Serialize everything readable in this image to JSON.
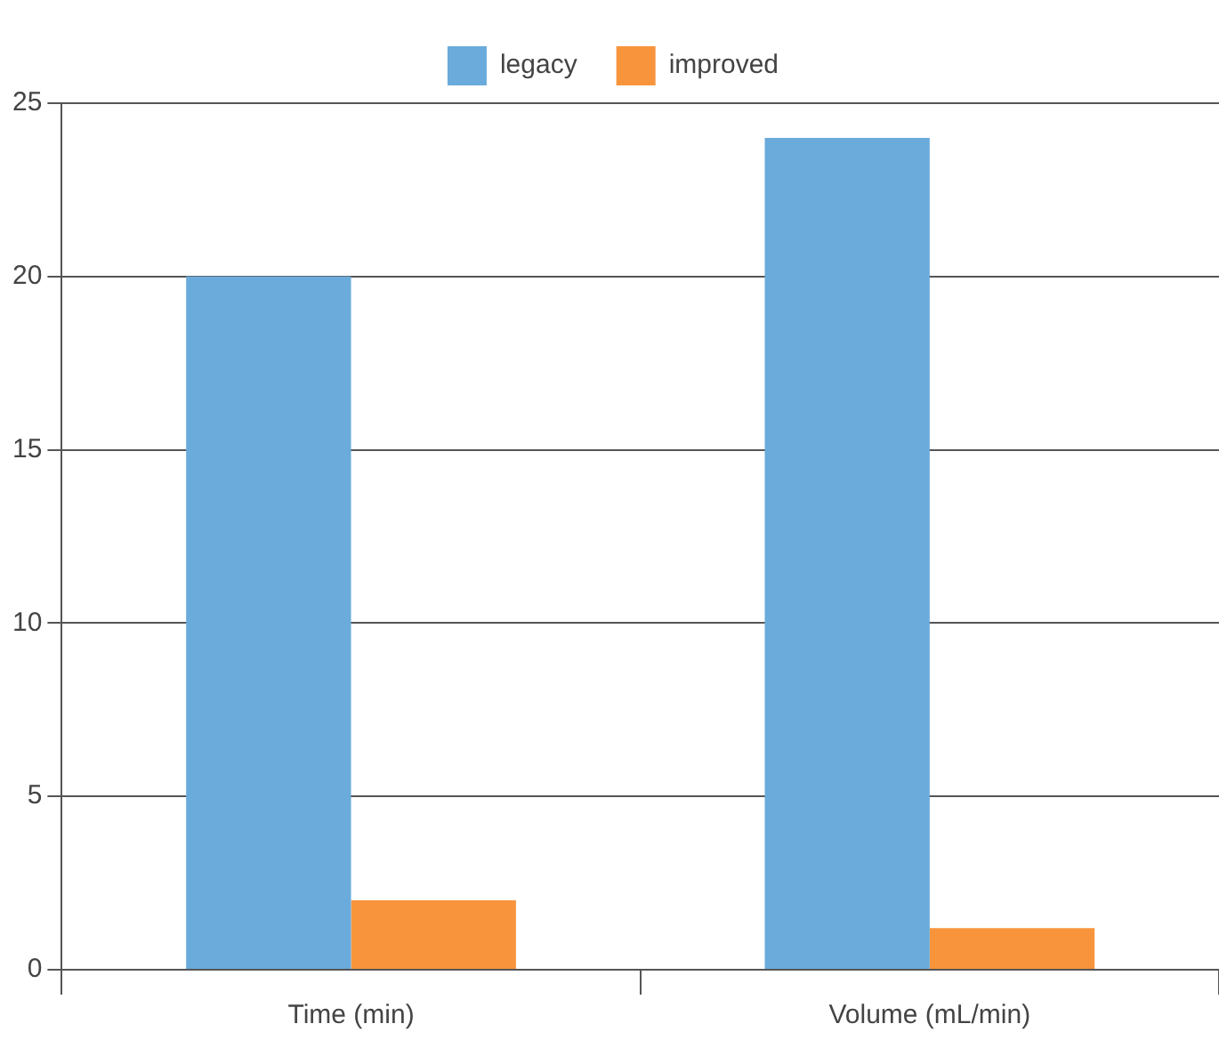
{
  "chart_data": {
    "type": "bar",
    "categories": [
      "Time (min)",
      "Volume (mL/min)"
    ],
    "series": [
      {
        "name": "legacy",
        "color": "#6aabdc",
        "values": [
          20,
          24
        ]
      },
      {
        "name": "improved",
        "color": "#f7943c",
        "values": [
          2,
          1.2
        ]
      }
    ],
    "ylim": [
      0,
      25
    ],
    "yticks": [
      0,
      5,
      10,
      15,
      20,
      25
    ],
    "grid": "y",
    "legend": "top"
  }
}
